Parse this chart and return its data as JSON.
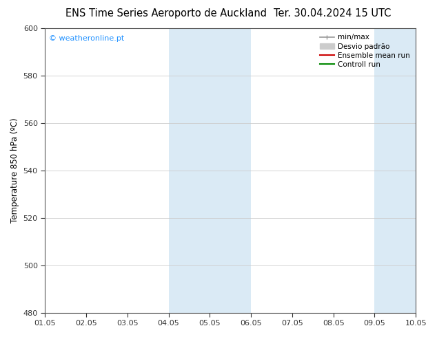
{
  "title_left": "ENS Time Series Aeroporto de Auckland",
  "title_right": "Ter. 30.04.2024 15 UTC",
  "ylabel": "Temperature 850 hPa (ºC)",
  "xlabels": [
    "01.05",
    "02.05",
    "03.05",
    "04.05",
    "05.05",
    "06.05",
    "07.05",
    "08.05",
    "09.05",
    "10.05"
  ],
  "ylim": [
    480,
    600
  ],
  "yticks": [
    480,
    500,
    520,
    540,
    560,
    580,
    600
  ],
  "bg_color": "#ffffff",
  "plot_bg_color": "#ffffff",
  "shaded_regions": [
    {
      "xstart": 3,
      "xend": 5,
      "color": "#daeaf5"
    },
    {
      "xstart": 8,
      "xend": 9,
      "color": "#daeaf5"
    }
  ],
  "legend_entries": [
    {
      "label": "min/max",
      "color": "#999999",
      "lw": 1.2,
      "type": "line_with_caps"
    },
    {
      "label": "Desvio padrão",
      "color": "#cccccc",
      "lw": 8,
      "type": "thick_line"
    },
    {
      "label": "Ensemble mean run",
      "color": "#cc0000",
      "lw": 1.5,
      "type": "line"
    },
    {
      "label": "Controll run",
      "color": "#008800",
      "lw": 1.5,
      "type": "line"
    }
  ],
  "watermark_text": "© weatheronline.pt",
  "watermark_color": "#1e90ff",
  "title_fontsize": 10.5,
  "tick_fontsize": 8,
  "ylabel_fontsize": 8.5,
  "legend_fontsize": 7.5,
  "grid_color": "#cccccc",
  "spine_color": "#555555",
  "tick_color": "#333333"
}
